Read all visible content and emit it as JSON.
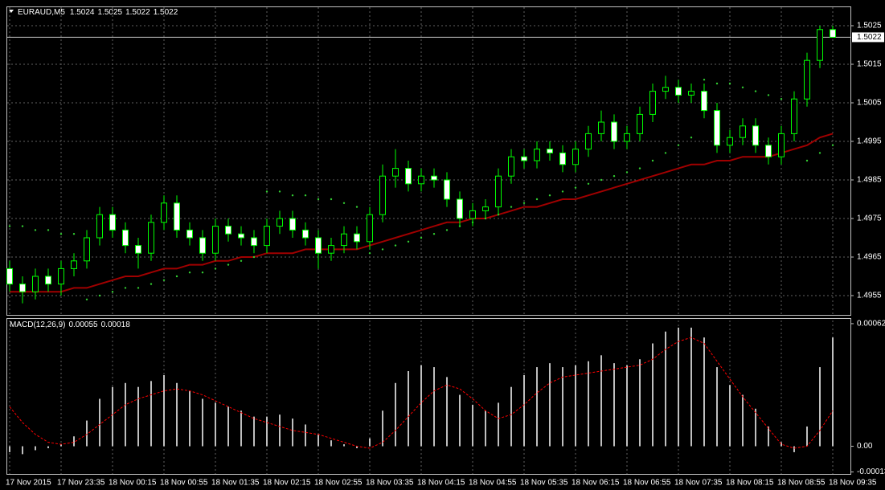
{
  "chart_data": [
    {
      "type": "candlestick",
      "title": "EURAUD,M5",
      "header_values": [
        1.5024,
        1.5025,
        1.5022,
        1.5022
      ],
      "categories": [
        "17 Nov 2015",
        null,
        null,
        null,
        "17 Nov 23:35",
        null,
        null,
        null,
        "18 Nov 00:15",
        null,
        null,
        null,
        "18 Nov 00:55",
        null,
        null,
        null,
        "18 Nov 01:35",
        null,
        null,
        null,
        "18 Nov 02:15",
        null,
        null,
        null,
        "18 Nov 02:55",
        null,
        null,
        null,
        "18 Nov 03:35",
        null,
        null,
        null,
        "18 Nov 04:15",
        null,
        null,
        null,
        "18 Nov 04:55",
        null,
        null,
        null,
        "18 Nov 05:35",
        null,
        null,
        null,
        "18 Nov 06:15",
        null,
        null,
        null,
        "18 Nov 06:55",
        null,
        null,
        null,
        "18 Nov 07:35",
        null,
        null,
        null,
        "18 Nov 08:15",
        null,
        null,
        null,
        "18 Nov 08:55",
        null,
        null,
        null,
        "18 Nov 09:35"
      ],
      "open": [
        1.4962,
        1.4958,
        1.4956,
        1.496,
        1.4958,
        1.4962,
        1.4964,
        1.497,
        1.4976,
        1.4972,
        1.4968,
        1.4966,
        1.4974,
        1.4979,
        1.4972,
        1.497,
        1.4966,
        1.4973,
        1.4971,
        1.497,
        1.4968,
        1.4973,
        1.4975,
        1.4972,
        1.497,
        1.4966,
        1.4968,
        1.4971,
        1.4969,
        1.4976,
        1.4986,
        1.4988,
        1.4984,
        1.4986,
        1.4985,
        1.498,
        1.4975,
        1.4977,
        1.4978,
        1.4986,
        1.4991,
        1.499,
        1.4993,
        1.4992,
        1.4989,
        1.4993,
        1.4997,
        1.5,
        1.4995,
        1.4997,
        1.5002,
        1.5008,
        1.5009,
        1.5007,
        1.5008,
        1.5003,
        1.4994,
        1.4996,
        1.4999,
        1.4994,
        1.4991,
        1.4997,
        1.5006,
        1.5016,
        1.5024
      ],
      "high": [
        1.4964,
        1.496,
        1.4962,
        1.4962,
        1.4964,
        1.4966,
        1.4972,
        1.4978,
        1.4978,
        1.4974,
        1.497,
        1.4976,
        1.4981,
        1.4981,
        1.4974,
        1.4972,
        1.4975,
        1.4975,
        1.4973,
        1.4972,
        1.4975,
        1.4977,
        1.4977,
        1.4974,
        1.4972,
        1.497,
        1.4973,
        1.4973,
        1.4978,
        1.4989,
        1.4993,
        1.499,
        1.4988,
        1.4988,
        1.4987,
        1.4982,
        1.4979,
        1.498,
        1.4988,
        1.4993,
        1.4993,
        1.4995,
        1.4995,
        1.4994,
        1.4995,
        1.4999,
        1.5003,
        1.5002,
        1.4999,
        1.5004,
        1.501,
        1.5012,
        1.5011,
        1.501,
        1.501,
        1.5005,
        1.4998,
        1.5001,
        1.5001,
        1.4996,
        1.4999,
        1.5008,
        1.5018,
        1.5025,
        1.5025
      ],
      "low": [
        1.4956,
        1.4953,
        1.4954,
        1.4956,
        1.4955,
        1.496,
        1.4962,
        1.4968,
        1.497,
        1.4966,
        1.4962,
        1.4964,
        1.4972,
        1.497,
        1.4968,
        1.4964,
        1.4964,
        1.4969,
        1.4968,
        1.4966,
        1.4966,
        1.4971,
        1.497,
        1.4968,
        1.4962,
        1.4964,
        1.4966,
        1.4967,
        1.4967,
        1.4974,
        1.4983,
        1.4982,
        1.4982,
        1.4983,
        1.4978,
        1.4973,
        1.4973,
        1.4975,
        1.4976,
        1.4984,
        1.4988,
        1.4988,
        1.499,
        1.4987,
        1.4987,
        1.4991,
        1.4995,
        1.4993,
        1.4993,
        1.4995,
        1.5,
        1.5006,
        1.5005,
        1.5005,
        1.5001,
        1.4992,
        1.4992,
        1.4994,
        1.4992,
        1.4989,
        1.4989,
        1.4995,
        1.5004,
        1.5014,
        1.5022
      ],
      "close": [
        1.4958,
        1.4956,
        1.496,
        1.4958,
        1.4962,
        1.4964,
        1.497,
        1.4976,
        1.4972,
        1.4968,
        1.4966,
        1.4974,
        1.4979,
        1.4972,
        1.497,
        1.4966,
        1.4973,
        1.4971,
        1.497,
        1.4968,
        1.4973,
        1.4975,
        1.4972,
        1.497,
        1.4966,
        1.4968,
        1.4971,
        1.4969,
        1.4976,
        1.4986,
        1.4988,
        1.4984,
        1.4986,
        1.4985,
        1.498,
        1.4975,
        1.4977,
        1.4978,
        1.4986,
        1.4991,
        1.499,
        1.4993,
        1.4992,
        1.4989,
        1.4993,
        1.4997,
        1.5,
        1.4995,
        1.4997,
        1.5002,
        1.5008,
        1.5009,
        1.5007,
        1.5008,
        1.5003,
        1.4994,
        1.4996,
        1.4999,
        1.4994,
        1.4991,
        1.4997,
        1.5006,
        1.5016,
        1.5024,
        1.5022
      ],
      "wick_color": "#00ff00",
      "bull_color": "#000000",
      "bear_color": "#ffffff",
      "ylim": [
        1.495,
        1.503
      ],
      "yticks": [
        1.4955,
        1.4965,
        1.4975,
        1.4985,
        1.4995,
        1.5005,
        1.5015,
        1.5025
      ],
      "grid": true,
      "current_price": 1.5022,
      "moving_average": {
        "color": "#a00000",
        "values": [
          1.4956,
          1.4956,
          1.4956,
          1.4956,
          1.4956,
          1.4957,
          1.4957,
          1.4958,
          1.4959,
          1.496,
          1.496,
          1.4961,
          1.4962,
          1.4962,
          1.4963,
          1.4963,
          1.4964,
          1.4964,
          1.4965,
          1.4965,
          1.4966,
          1.4966,
          1.4966,
          1.4967,
          1.4967,
          1.4967,
          1.4967,
          1.4967,
          1.4968,
          1.4969,
          1.497,
          1.4971,
          1.4972,
          1.4973,
          1.4974,
          1.4974,
          1.4975,
          1.4975,
          1.4976,
          1.4977,
          1.4978,
          1.4978,
          1.4979,
          1.498,
          1.498,
          1.4981,
          1.4982,
          1.4983,
          1.4984,
          1.4985,
          1.4986,
          1.4987,
          1.4988,
          1.4989,
          1.4989,
          1.499,
          1.499,
          1.4991,
          1.4991,
          1.4991,
          1.4992,
          1.4993,
          1.4994,
          1.4996,
          1.4997
        ]
      },
      "parabolic_sar": {
        "color": "#32cd32",
        "values": [
          1.4973,
          1.4973,
          1.4972,
          1.4972,
          1.4971,
          1.4971,
          1.4954,
          1.4955,
          1.4956,
          1.4957,
          1.4957,
          1.4958,
          1.4959,
          1.496,
          1.4961,
          1.4961,
          1.4962,
          1.4963,
          1.4964,
          1.4965,
          1.4982,
          1.4982,
          1.4981,
          1.4981,
          1.498,
          1.498,
          1.4979,
          1.4978,
          1.4966,
          1.4967,
          1.4968,
          1.4969,
          1.497,
          1.4971,
          1.4972,
          1.4973,
          1.4974,
          1.4975,
          1.4976,
          1.4978,
          1.4979,
          1.498,
          1.4981,
          1.4982,
          1.4983,
          1.4984,
          1.4985,
          1.4986,
          1.4987,
          1.4988,
          1.499,
          1.4992,
          1.4994,
          1.4996,
          1.5011,
          1.501,
          1.501,
          1.5009,
          1.5008,
          1.5007,
          1.5006,
          1.5005,
          1.499,
          1.4992,
          1.4994
        ]
      }
    },
    {
      "type": "macd",
      "title": "MACD(12,26,9)",
      "header_values": [
        0.00055,
        0.00018
      ],
      "histogram": {
        "color": "#ffffff",
        "values": [
          -3e-05,
          -4e-05,
          -2e-05,
          -1e-05,
          1e-05,
          5e-05,
          0.00013,
          0.00024,
          0.0003,
          0.00032,
          0.0003,
          0.00033,
          0.00036,
          0.00032,
          0.00028,
          0.00024,
          0.00022,
          0.0002,
          0.00018,
          0.00015,
          0.00015,
          0.00016,
          0.00014,
          0.00011,
          6e-05,
          3e-05,
          1e-05,
          -1e-05,
          4e-05,
          0.00018,
          0.00032,
          0.00038,
          0.00041,
          0.0004,
          0.00035,
          0.00026,
          0.00021,
          0.00018,
          0.00022,
          0.0003,
          0.00036,
          0.0004,
          0.00042,
          0.0004,
          0.00041,
          0.00043,
          0.00046,
          0.00042,
          0.00041,
          0.00044,
          0.00052,
          0.00058,
          0.0006,
          0.0006,
          0.00055,
          0.0004,
          0.00031,
          0.00026,
          0.00019,
          0.0001,
          2e-05,
          -3e-05,
          0.0001,
          0.0004,
          0.00055
        ]
      },
      "signal": {
        "color": "#ff0000",
        "values": [
          0.0002,
          0.00012,
          6e-05,
          2e-05,
          1e-05,
          2e-05,
          6e-05,
          0.00011,
          0.00016,
          0.00021,
          0.00024,
          0.00026,
          0.00028,
          0.00029,
          0.00028,
          0.00026,
          0.00023,
          0.0002,
          0.00017,
          0.00014,
          0.00012,
          0.0001,
          8e-05,
          7e-05,
          6e-05,
          4e-05,
          2e-05,
          0,
          -1e-05,
          2e-05,
          8e-05,
          0.00015,
          0.00022,
          0.00028,
          0.00031,
          0.00029,
          0.00024,
          0.00018,
          0.00014,
          0.00016,
          0.00021,
          0.00027,
          0.00032,
          0.00035,
          0.00036,
          0.00037,
          0.00038,
          0.00039,
          0.0004,
          0.00041,
          0.00044,
          0.00049,
          0.00053,
          0.00055,
          0.00052,
          0.00043,
          0.00034,
          0.00025,
          0.00017,
          9e-05,
          1e-05,
          -1e-05,
          0,
          8e-05,
          0.00018
        ]
      },
      "ylim": [
        -0.00014,
        0.00064
      ],
      "yticks": [
        0.00062,
        {
          "value": 0,
          "label": "0.00"
        },
        -0.00013
      ],
      "grid": true
    }
  ]
}
